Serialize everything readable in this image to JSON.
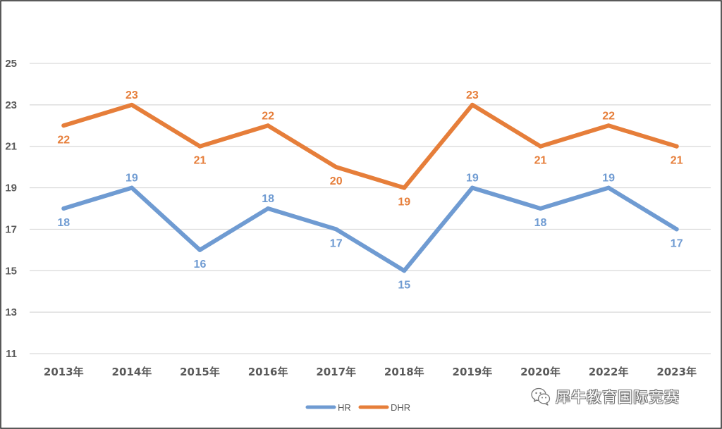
{
  "chart_data": {
    "type": "line",
    "categories": [
      "2013年",
      "2014年",
      "2015年",
      "2016年",
      "2017年",
      "2018年",
      "2019年",
      "2020年",
      "2022年",
      "2023年"
    ],
    "series": [
      {
        "name": "HR",
        "values": [
          18,
          19,
          16,
          18,
          17,
          15,
          19,
          18,
          19,
          17
        ],
        "color": "#6f9bd2"
      },
      {
        "name": "DHR",
        "values": [
          22,
          23,
          21,
          22,
          20,
          19,
          23,
          21,
          22,
          21
        ],
        "color": "#e67e3a"
      }
    ],
    "ylim": [
      11,
      25
    ],
    "yticks": [
      "11",
      "13",
      "15",
      "17",
      "19",
      "21",
      "23",
      "25"
    ],
    "grid": true,
    "legend_position": "bottom",
    "data_labels": true
  },
  "watermark": {
    "text": "犀牛教育国际竞赛",
    "icon": "wechat-icon"
  }
}
